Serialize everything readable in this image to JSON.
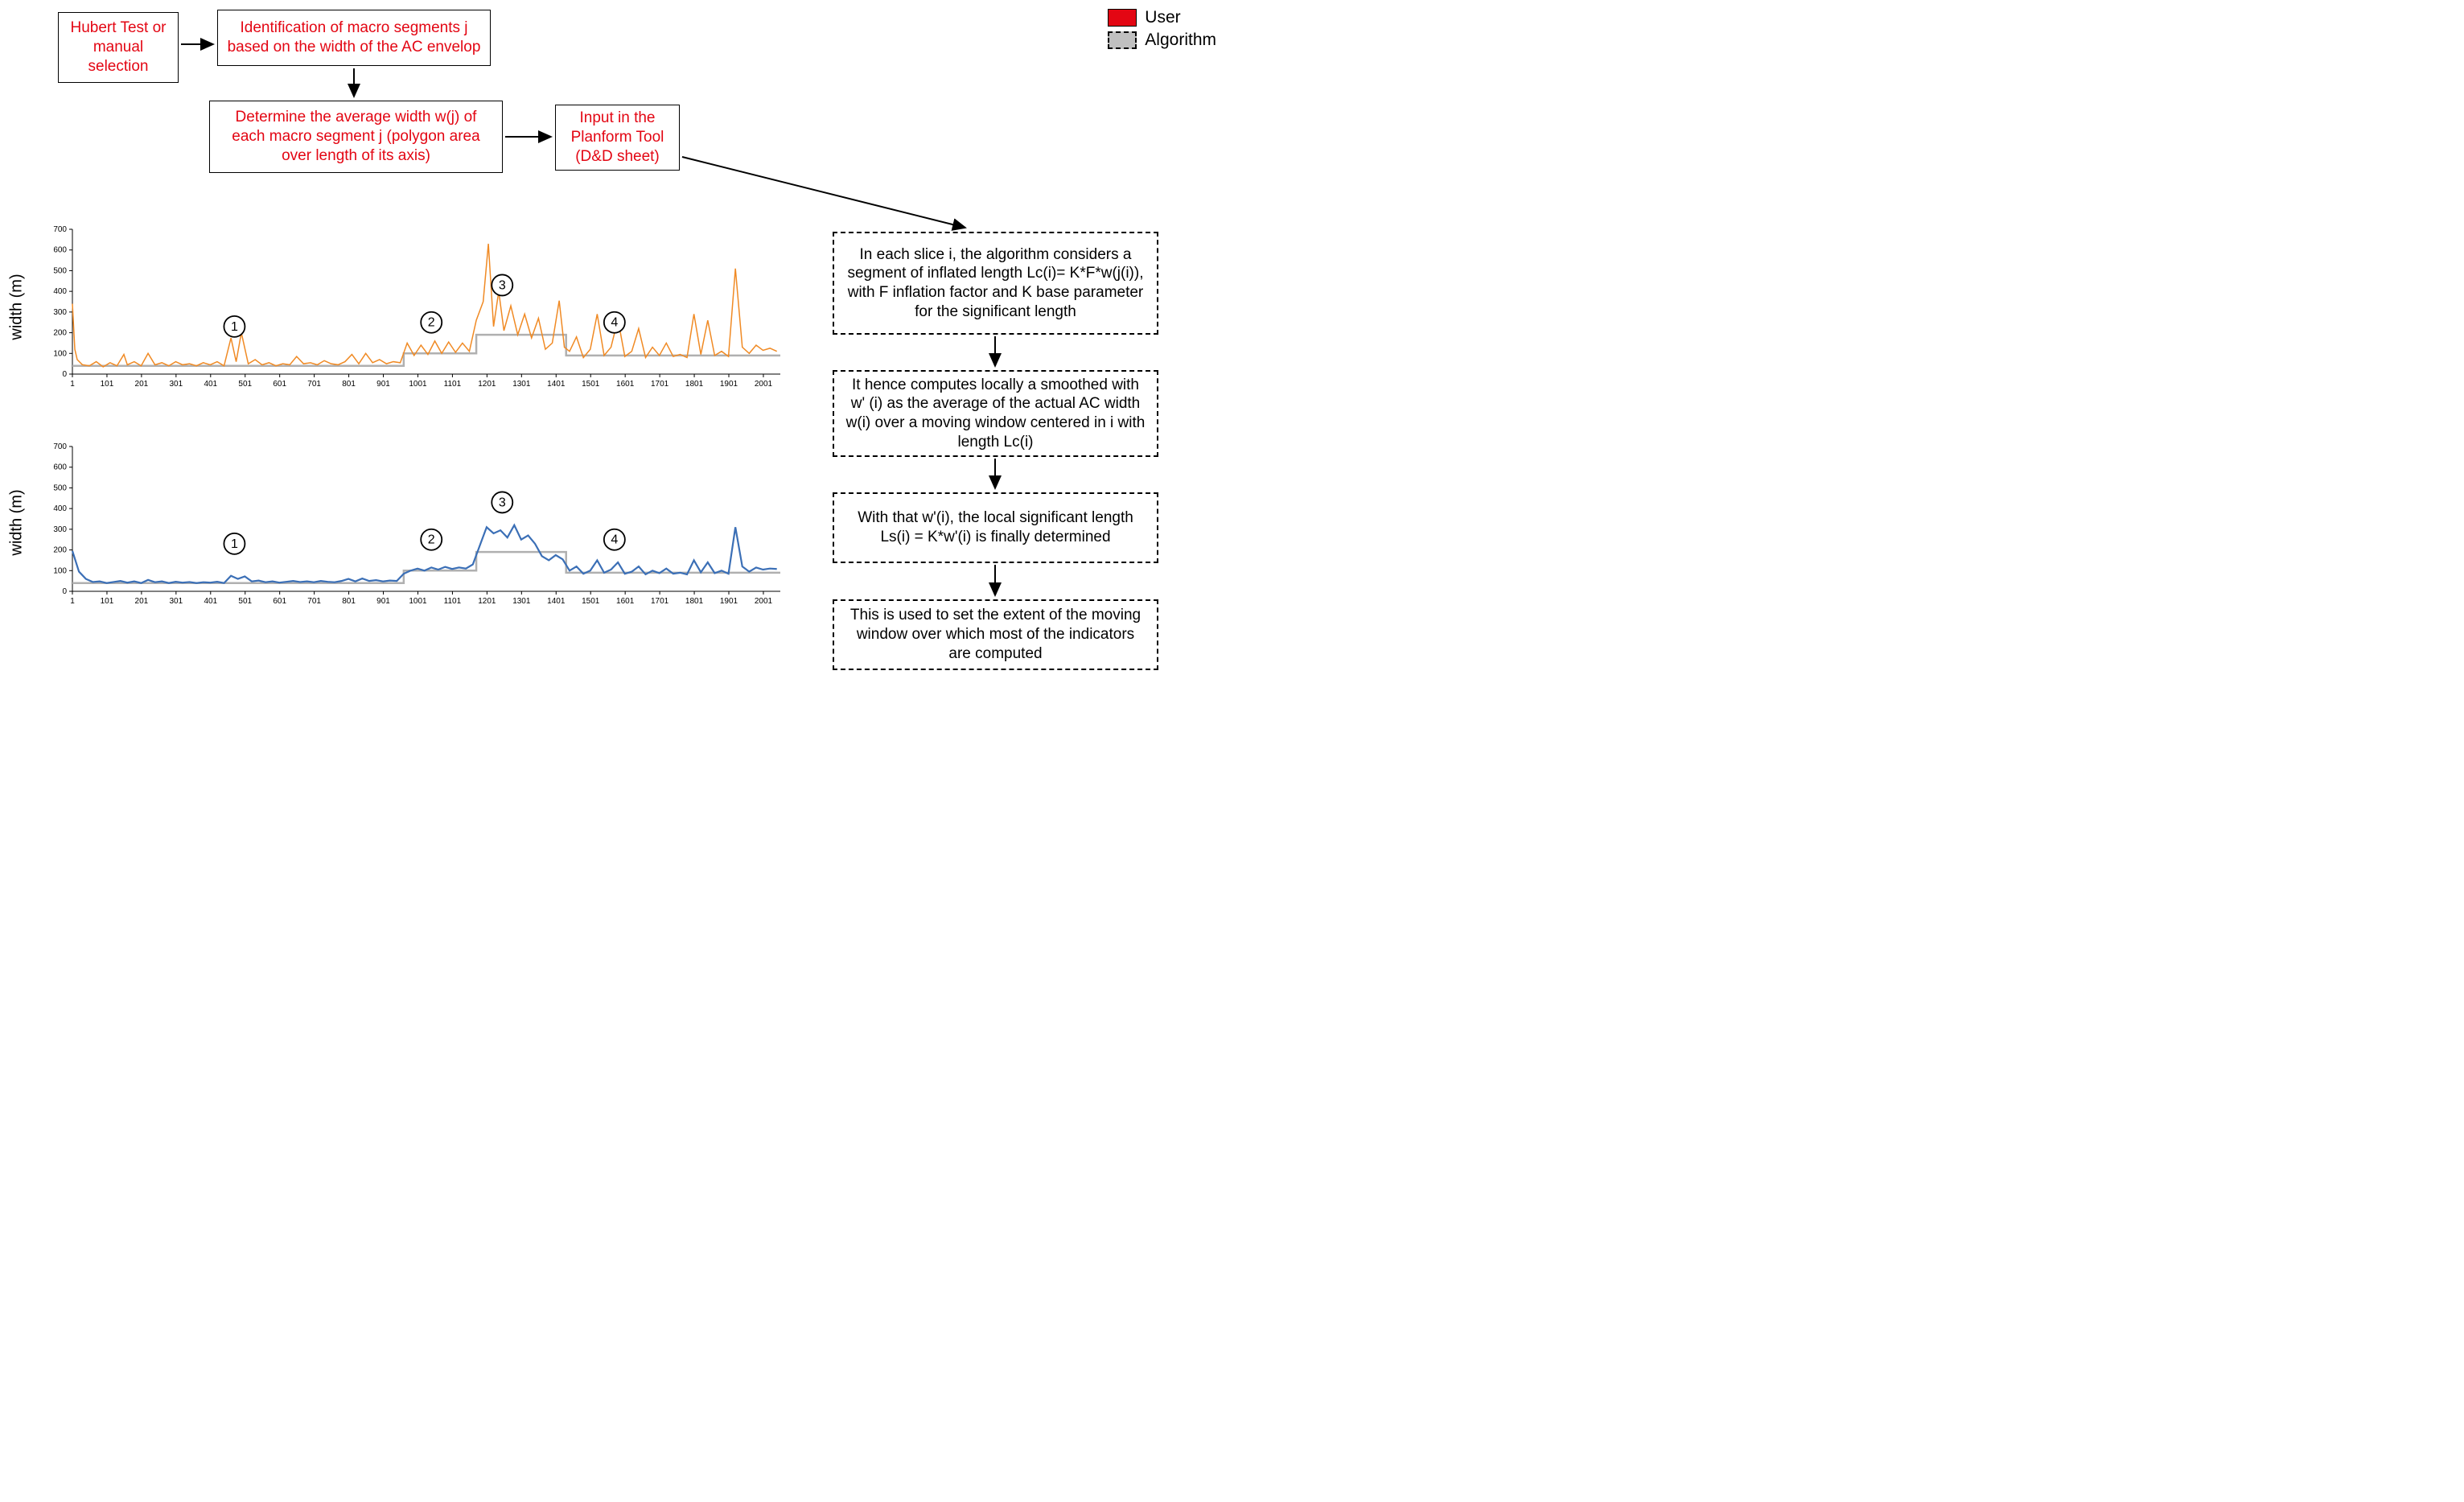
{
  "legend": {
    "user": "User",
    "algo": "Algorithm"
  },
  "boxes": {
    "hubert": "Hubert Test or manual selection",
    "identify": "Identification of macro segments j based on the width of the AC envelop",
    "avgwidth": "Determine the average width w(j) of each macro segment j (polygon area over length of its axis)",
    "inputtool": "Input in the Planform Tool (D&D sheet)",
    "algo_a": "In each slice i, the algorithm considers a segment of inflated length Lc(i)= K*F*w(j(i)), with F inflation factor and K base parameter for the significant length",
    "algo_b": "It hence computes locally a smoothed with w' (i) as the average of the actual AC width w(i) over a moving window centered in i with length Lc(i)",
    "algo_c": "With that w'(i), the local significant length Ls(i) = K*w'(i) is finally determined",
    "algo_d": "This is used to set the extent of the moving window over which most of the indicators are computed"
  },
  "charts": {
    "ylabel": "width (m)",
    "ylim": [
      0,
      700
    ],
    "yticks": [
      0,
      100,
      200,
      300,
      400,
      500,
      600,
      700
    ],
    "xlim": [
      1,
      2050
    ],
    "xticks": [
      1,
      101,
      201,
      301,
      401,
      501,
      601,
      701,
      801,
      901,
      1001,
      1101,
      1201,
      1301,
      1401,
      1501,
      1601,
      1701,
      1801,
      1901,
      2001
    ],
    "tick_fontsize": 10,
    "axis_color": "#000000",
    "grid_color": "#e6e6e6",
    "badges": [
      {
        "n": "1",
        "x": 470
      },
      {
        "n": "2",
        "x": 1040
      },
      {
        "n": "3",
        "x": 1245
      },
      {
        "n": "4",
        "x": 1570
      }
    ],
    "step_line": {
      "color": "#b0b0b0",
      "width": 2.5,
      "segments": [
        {
          "x0": 1,
          "x1": 960,
          "y": 40
        },
        {
          "x0": 960,
          "x1": 1170,
          "y": 100
        },
        {
          "x0": 1170,
          "x1": 1430,
          "y": 190
        },
        {
          "x0": 1430,
          "x1": 2050,
          "y": 90
        }
      ]
    },
    "top": {
      "line_color": "#f08a24",
      "line_width": 1.5,
      "data": [
        [
          1,
          340
        ],
        [
          8,
          120
        ],
        [
          15,
          70
        ],
        [
          30,
          45
        ],
        [
          50,
          40
        ],
        [
          70,
          60
        ],
        [
          90,
          35
        ],
        [
          110,
          55
        ],
        [
          130,
          40
        ],
        [
          150,
          95
        ],
        [
          160,
          45
        ],
        [
          180,
          60
        ],
        [
          200,
          40
        ],
        [
          220,
          100
        ],
        [
          240,
          45
        ],
        [
          260,
          55
        ],
        [
          280,
          40
        ],
        [
          300,
          60
        ],
        [
          320,
          45
        ],
        [
          340,
          50
        ],
        [
          360,
          40
        ],
        [
          380,
          55
        ],
        [
          400,
          45
        ],
        [
          420,
          60
        ],
        [
          440,
          40
        ],
        [
          460,
          175
        ],
        [
          475,
          60
        ],
        [
          490,
          200
        ],
        [
          510,
          50
        ],
        [
          530,
          70
        ],
        [
          550,
          45
        ],
        [
          570,
          55
        ],
        [
          590,
          40
        ],
        [
          610,
          50
        ],
        [
          630,
          45
        ],
        [
          650,
          85
        ],
        [
          670,
          50
        ],
        [
          690,
          55
        ],
        [
          710,
          45
        ],
        [
          730,
          65
        ],
        [
          750,
          50
        ],
        [
          770,
          45
        ],
        [
          790,
          60
        ],
        [
          810,
          95
        ],
        [
          830,
          50
        ],
        [
          850,
          100
        ],
        [
          870,
          55
        ],
        [
          890,
          70
        ],
        [
          910,
          50
        ],
        [
          930,
          60
        ],
        [
          950,
          55
        ],
        [
          970,
          150
        ],
        [
          990,
          90
        ],
        [
          1010,
          140
        ],
        [
          1030,
          95
        ],
        [
          1050,
          160
        ],
        [
          1070,
          100
        ],
        [
          1090,
          155
        ],
        [
          1110,
          105
        ],
        [
          1130,
          150
        ],
        [
          1150,
          110
        ],
        [
          1170,
          260
        ],
        [
          1190,
          350
        ],
        [
          1205,
          630
        ],
        [
          1220,
          230
        ],
        [
          1235,
          400
        ],
        [
          1250,
          210
        ],
        [
          1270,
          330
        ],
        [
          1290,
          190
        ],
        [
          1310,
          290
        ],
        [
          1330,
          175
        ],
        [
          1350,
          270
        ],
        [
          1370,
          120
        ],
        [
          1390,
          150
        ],
        [
          1410,
          355
        ],
        [
          1425,
          130
        ],
        [
          1440,
          110
        ],
        [
          1460,
          180
        ],
        [
          1480,
          80
        ],
        [
          1500,
          120
        ],
        [
          1520,
          290
        ],
        [
          1540,
          90
        ],
        [
          1560,
          130
        ],
        [
          1580,
          265
        ],
        [
          1600,
          85
        ],
        [
          1620,
          110
        ],
        [
          1640,
          220
        ],
        [
          1660,
          80
        ],
        [
          1680,
          130
        ],
        [
          1700,
          90
        ],
        [
          1720,
          150
        ],
        [
          1740,
          85
        ],
        [
          1760,
          95
        ],
        [
          1780,
          80
        ],
        [
          1800,
          290
        ],
        [
          1820,
          95
        ],
        [
          1840,
          260
        ],
        [
          1860,
          90
        ],
        [
          1880,
          110
        ],
        [
          1900,
          85
        ],
        [
          1920,
          510
        ],
        [
          1940,
          130
        ],
        [
          1960,
          100
        ],
        [
          1980,
          140
        ],
        [
          2000,
          115
        ],
        [
          2020,
          125
        ],
        [
          2040,
          110
        ]
      ]
    },
    "bottom": {
      "line_color": "#3b6fb6",
      "line_width": 2.2,
      "data": [
        [
          1,
          195
        ],
        [
          20,
          95
        ],
        [
          40,
          60
        ],
        [
          60,
          45
        ],
        [
          80,
          48
        ],
        [
          100,
          40
        ],
        [
          120,
          45
        ],
        [
          140,
          50
        ],
        [
          160,
          42
        ],
        [
          180,
          48
        ],
        [
          200,
          40
        ],
        [
          220,
          55
        ],
        [
          240,
          44
        ],
        [
          260,
          48
        ],
        [
          280,
          40
        ],
        [
          300,
          46
        ],
        [
          320,
          42
        ],
        [
          340,
          45
        ],
        [
          360,
          40
        ],
        [
          380,
          44
        ],
        [
          400,
          42
        ],
        [
          420,
          46
        ],
        [
          440,
          40
        ],
        [
          460,
          75
        ],
        [
          480,
          60
        ],
        [
          500,
          72
        ],
        [
          520,
          48
        ],
        [
          540,
          52
        ],
        [
          560,
          44
        ],
        [
          580,
          48
        ],
        [
          600,
          42
        ],
        [
          620,
          46
        ],
        [
          640,
          50
        ],
        [
          660,
          45
        ],
        [
          680,
          48
        ],
        [
          700,
          44
        ],
        [
          720,
          50
        ],
        [
          740,
          46
        ],
        [
          760,
          44
        ],
        [
          780,
          50
        ],
        [
          800,
          60
        ],
        [
          820,
          48
        ],
        [
          840,
          62
        ],
        [
          860,
          50
        ],
        [
          880,
          54
        ],
        [
          900,
          48
        ],
        [
          920,
          52
        ],
        [
          940,
          50
        ],
        [
          960,
          85
        ],
        [
          980,
          100
        ],
        [
          1000,
          110
        ],
        [
          1020,
          100
        ],
        [
          1040,
          115
        ],
        [
          1060,
          105
        ],
        [
          1080,
          118
        ],
        [
          1100,
          108
        ],
        [
          1120,
          115
        ],
        [
          1140,
          110
        ],
        [
          1160,
          130
        ],
        [
          1180,
          220
        ],
        [
          1200,
          310
        ],
        [
          1220,
          280
        ],
        [
          1240,
          295
        ],
        [
          1260,
          260
        ],
        [
          1280,
          320
        ],
        [
          1300,
          250
        ],
        [
          1320,
          270
        ],
        [
          1340,
          230
        ],
        [
          1360,
          170
        ],
        [
          1380,
          150
        ],
        [
          1400,
          175
        ],
        [
          1420,
          155
        ],
        [
          1440,
          100
        ],
        [
          1460,
          120
        ],
        [
          1480,
          85
        ],
        [
          1500,
          100
        ],
        [
          1520,
          150
        ],
        [
          1540,
          90
        ],
        [
          1560,
          105
        ],
        [
          1580,
          140
        ],
        [
          1600,
          85
        ],
        [
          1620,
          95
        ],
        [
          1640,
          120
        ],
        [
          1660,
          82
        ],
        [
          1680,
          100
        ],
        [
          1700,
          88
        ],
        [
          1720,
          110
        ],
        [
          1740,
          85
        ],
        [
          1760,
          90
        ],
        [
          1780,
          82
        ],
        [
          1800,
          150
        ],
        [
          1820,
          92
        ],
        [
          1840,
          140
        ],
        [
          1860,
          88
        ],
        [
          1880,
          100
        ],
        [
          1900,
          85
        ],
        [
          1920,
          310
        ],
        [
          1940,
          120
        ],
        [
          1960,
          95
        ],
        [
          1980,
          115
        ],
        [
          2000,
          105
        ],
        [
          2020,
          110
        ],
        [
          2040,
          108
        ]
      ]
    }
  },
  "colors": {
    "user_red": "#e30613",
    "algo_grey": "#c0c0c0",
    "background": "#ffffff"
  }
}
